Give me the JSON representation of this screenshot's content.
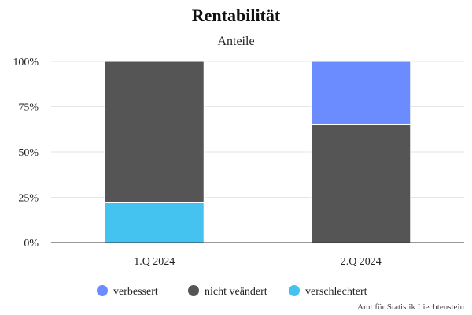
{
  "chart_data": {
    "type": "bar",
    "stacked": true,
    "percent": true,
    "title": "Rentabilität",
    "subtitle": "Anteile",
    "categories": [
      "1.Q 2024",
      "2.Q 2024"
    ],
    "series": [
      {
        "name": "verbessert",
        "color": "#6b8cff",
        "values": [
          0,
          35
        ]
      },
      {
        "name": "nicht veändert",
        "color": "#555555",
        "values": [
          78,
          65
        ]
      },
      {
        "name": "verschlechtert",
        "color": "#45c3f0",
        "values": [
          22,
          0
        ]
      }
    ],
    "y_ticks": [
      "0%",
      "25%",
      "50%",
      "75%",
      "100%"
    ],
    "ylim": [
      0,
      100
    ],
    "grid": true,
    "legend_position": "bottom"
  },
  "credit": "Amt für Statistik Liechtenstein"
}
